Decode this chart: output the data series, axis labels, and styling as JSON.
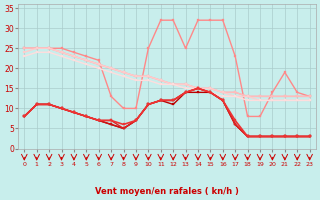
{
  "background_color": "#c8eeec",
  "grid_color": "#aacccc",
  "xlabel": "Vent moyen/en rafales ( kn/h )",
  "ylim": [
    0,
    36
  ],
  "yticks": [
    0,
    5,
    10,
    15,
    20,
    25,
    30,
    35
  ],
  "x_labels": [
    "0",
    "1",
    "2",
    "3",
    "4",
    "5",
    "6",
    "7",
    "8",
    "9",
    "10",
    "11",
    "12",
    "13",
    "14",
    "15",
    "16",
    "17",
    "18",
    "19",
    "20",
    "21",
    "22",
    "23"
  ],
  "series": [
    {
      "name": "rafales_spike",
      "color": "#ff8888",
      "linewidth": 1.0,
      "marker": "s",
      "markersize": 2,
      "data": [
        25,
        25,
        25,
        25,
        24,
        23,
        22,
        13,
        10,
        10,
        25,
        32,
        32,
        25,
        32,
        32,
        32,
        23,
        8,
        8,
        14,
        19,
        14,
        13
      ]
    },
    {
      "name": "light_line1",
      "color": "#ffaaaa",
      "linewidth": 1.0,
      "marker": "s",
      "markersize": 2,
      "data": [
        25,
        25,
        25,
        24,
        23,
        22,
        21,
        20,
        19,
        18,
        18,
        17,
        16,
        16,
        15,
        15,
        14,
        14,
        13,
        13,
        13,
        13,
        13,
        13
      ]
    },
    {
      "name": "light_line2",
      "color": "#ffbbbb",
      "linewidth": 1.0,
      "marker": "s",
      "markersize": 2,
      "data": [
        25,
        25,
        25,
        24,
        23,
        22,
        21,
        20,
        19,
        18,
        18,
        17,
        16,
        16,
        15,
        15,
        14,
        14,
        13,
        13,
        13,
        13,
        13,
        13
      ]
    },
    {
      "name": "light_line3",
      "color": "#ffcccc",
      "linewidth": 1.0,
      "marker": "s",
      "markersize": 2,
      "data": [
        24,
        25,
        25,
        24,
        23,
        22,
        21,
        20,
        19,
        18,
        18,
        17,
        16,
        16,
        15,
        15,
        14,
        13,
        13,
        12,
        12,
        12,
        12,
        12
      ]
    },
    {
      "name": "light_line4",
      "color": "#ffdddd",
      "linewidth": 1.0,
      "marker": "s",
      "markersize": 2,
      "data": [
        23,
        24,
        24,
        23,
        22,
        21,
        20,
        19,
        18,
        17,
        17,
        16,
        16,
        15,
        15,
        14,
        13,
        13,
        12,
        12,
        12,
        12,
        12,
        12
      ]
    },
    {
      "name": "dark_line1",
      "color": "#bb0000",
      "linewidth": 1.0,
      "marker": "s",
      "markersize": 2,
      "data": [
        8,
        11,
        11,
        10,
        9,
        8,
        7,
        6,
        5,
        7,
        11,
        12,
        11,
        14,
        14,
        14,
        12,
        6,
        3,
        3,
        3,
        3,
        3,
        3
      ]
    },
    {
      "name": "dark_line2",
      "color": "#cc1111",
      "linewidth": 1.0,
      "marker": "s",
      "markersize": 2,
      "data": [
        8,
        11,
        11,
        10,
        9,
        8,
        7,
        6,
        5,
        7,
        11,
        12,
        12,
        14,
        15,
        14,
        12,
        6,
        3,
        3,
        3,
        3,
        3,
        3
      ]
    },
    {
      "name": "dark_line3",
      "color": "#dd2222",
      "linewidth": 1.0,
      "marker": "s",
      "markersize": 2,
      "data": [
        8,
        11,
        11,
        10,
        9,
        8,
        7,
        7,
        5,
        7,
        11,
        12,
        12,
        14,
        15,
        14,
        12,
        6,
        3,
        3,
        3,
        3,
        3,
        3
      ]
    },
    {
      "name": "dark_line4",
      "color": "#ee3333",
      "linewidth": 1.2,
      "marker": "s",
      "markersize": 2,
      "data": [
        8,
        11,
        11,
        10,
        9,
        8,
        7,
        7,
        6,
        7,
        11,
        12,
        12,
        14,
        15,
        14,
        12,
        7,
        3,
        3,
        3,
        3,
        3,
        3
      ]
    }
  ],
  "arrow_color": "#cc0000"
}
